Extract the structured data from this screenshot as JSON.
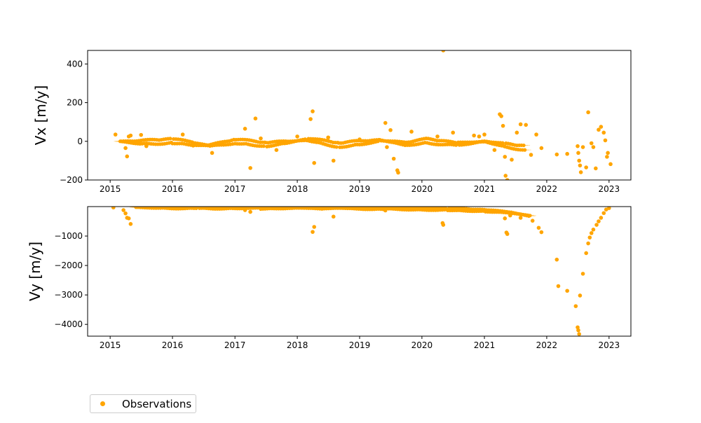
{
  "chart_data": {
    "type": "scatter",
    "x_axis": {
      "type": "date",
      "range": [
        "2014-08-22",
        "2023-05-09"
      ],
      "tick_labels": [
        "2015",
        "2016",
        "2017",
        "2018",
        "2019",
        "2020",
        "2021",
        "2022",
        "2023"
      ]
    },
    "series_color": "#ffa500",
    "legend": {
      "label": "Observations",
      "placement": "bottom-left"
    },
    "panels": [
      {
        "ylabel": "Vx [m/y]",
        "ylim": [
          -200,
          470
        ],
        "y_ticks": [
          400,
          200,
          0,
          -200
        ],
        "y_tick_labels": [
          "400",
          "200",
          "0",
          "−200"
        ],
        "band": [
          [
            "2015-03-01",
            0
          ],
          [
            "2015-07-01",
            -5
          ],
          [
            "2016-01-01",
            2
          ],
          [
            "2016-05-01",
            -12
          ],
          [
            "2016-08-01",
            -22
          ],
          [
            "2017-01-01",
            0
          ],
          [
            "2017-07-01",
            -15
          ],
          [
            "2017-11-01",
            -5
          ],
          [
            "2018-03-01",
            10
          ],
          [
            "2018-09-01",
            -18
          ],
          [
            "2019-01-01",
            -8
          ],
          [
            "2019-05-01",
            5
          ],
          [
            "2019-10-01",
            -12
          ],
          [
            "2020-02-01",
            2
          ],
          [
            "2020-08-01",
            -15
          ],
          [
            "2021-01-01",
            0
          ],
          [
            "2021-05-01",
            -20
          ],
          [
            "2021-09-01",
            -35
          ]
        ],
        "points": [
          [
            "2015-02-01",
            35
          ],
          [
            "2015-04-01",
            -35
          ],
          [
            "2015-04-10",
            -78
          ],
          [
            "2015-04-20",
            25
          ],
          [
            "2015-05-01",
            30
          ],
          [
            "2015-07-01",
            33
          ],
          [
            "2015-08-01",
            -25
          ],
          [
            "2016-03-01",
            35
          ],
          [
            "2016-05-01",
            -22
          ],
          [
            "2016-08-20",
            -60
          ],
          [
            "2017-03-01",
            65
          ],
          [
            "2017-04-01",
            -138
          ],
          [
            "2017-05-01",
            118
          ],
          [
            "2017-06-01",
            15
          ],
          [
            "2017-09-01",
            -45
          ],
          [
            "2018-01-01",
            25
          ],
          [
            "2018-03-20",
            115
          ],
          [
            "2018-04-01",
            155
          ],
          [
            "2018-04-10",
            -112
          ],
          [
            "2018-07-01",
            20
          ],
          [
            "2018-08-01",
            -100
          ],
          [
            "2019-01-01",
            10
          ],
          [
            "2019-06-01",
            95
          ],
          [
            "2019-06-10",
            -30
          ],
          [
            "2019-07-01",
            58
          ],
          [
            "2019-07-20",
            -90
          ],
          [
            "2019-08-10",
            -150
          ],
          [
            "2019-08-15",
            -162
          ],
          [
            "2019-11-01",
            50
          ],
          [
            "2020-04-01",
            25
          ],
          [
            "2020-05-05",
            470
          ],
          [
            "2020-07-01",
            45
          ],
          [
            "2020-11-01",
            30
          ],
          [
            "2020-12-01",
            25
          ],
          [
            "2021-01-01",
            35
          ],
          [
            "2021-03-01",
            -45
          ],
          [
            "2021-04-01",
            140
          ],
          [
            "2021-04-10",
            130
          ],
          [
            "2021-04-20",
            80
          ],
          [
            "2021-05-01",
            -80
          ],
          [
            "2021-05-05",
            -178
          ],
          [
            "2021-05-15",
            -200
          ],
          [
            "2021-06-10",
            -95
          ],
          [
            "2021-07-10",
            45
          ],
          [
            "2021-08-01",
            88
          ],
          [
            "2021-09-01",
            85
          ],
          [
            "2021-10-01",
            -70
          ],
          [
            "2021-11-01",
            35
          ],
          [
            "2021-12-01",
            -35
          ],
          [
            "2022-03-01",
            -68
          ],
          [
            "2022-05-01",
            -65
          ],
          [
            "2022-07-01",
            -25
          ],
          [
            "2022-07-05",
            -60
          ],
          [
            "2022-07-10",
            -100
          ],
          [
            "2022-07-15",
            -125
          ],
          [
            "2022-07-20",
            -160
          ],
          [
            "2022-08-01",
            -30
          ],
          [
            "2022-08-20",
            -135
          ],
          [
            "2022-09-01",
            150
          ],
          [
            "2022-09-20",
            -10
          ],
          [
            "2022-10-01",
            -30
          ],
          [
            "2022-10-15",
            -140
          ],
          [
            "2022-11-01",
            60
          ],
          [
            "2022-11-15",
            75
          ],
          [
            "2022-12-01",
            45
          ],
          [
            "2022-12-10",
            5
          ],
          [
            "2022-12-20",
            -80
          ],
          [
            "2022-12-25",
            -60
          ],
          [
            "2023-01-10",
            -118
          ]
        ]
      },
      {
        "ylabel": "Vy [m/y]",
        "ylim": [
          -4400,
          0
        ],
        "y_ticks": [
          -1000,
          -2000,
          -3000,
          -4000
        ],
        "y_tick_labels": [
          "−1000",
          "−2000",
          "−3000",
          "−4000"
        ],
        "band": [
          [
            "2015-06-01",
            -20
          ],
          [
            "2016-06-01",
            -30
          ],
          [
            "2017-06-01",
            -40
          ],
          [
            "2018-06-01",
            -45
          ],
          [
            "2019-06-01",
            -60
          ],
          [
            "2020-06-01",
            -90
          ],
          [
            "2021-01-01",
            -130
          ],
          [
            "2021-06-01",
            -200
          ],
          [
            "2021-10-01",
            -320
          ]
        ],
        "points": [
          [
            "2015-01-20",
            -30
          ],
          [
            "2015-03-20",
            -120
          ],
          [
            "2015-04-01",
            -230
          ],
          [
            "2015-04-10",
            -380
          ],
          [
            "2015-04-20",
            -400
          ],
          [
            "2015-05-01",
            -590
          ],
          [
            "2016-03-01",
            -50
          ],
          [
            "2017-03-01",
            -120
          ],
          [
            "2017-04-01",
            -180
          ],
          [
            "2018-04-01",
            -860
          ],
          [
            "2018-04-10",
            -690
          ],
          [
            "2018-08-01",
            -340
          ],
          [
            "2019-06-01",
            -130
          ],
          [
            "2020-05-01",
            -560
          ],
          [
            "2020-05-05",
            -620
          ],
          [
            "2021-05-01",
            -400
          ],
          [
            "2021-05-10",
            -880
          ],
          [
            "2021-05-15",
            -930
          ],
          [
            "2021-06-01",
            -300
          ],
          [
            "2021-08-01",
            -380
          ],
          [
            "2021-10-10",
            -480
          ],
          [
            "2021-11-15",
            -720
          ],
          [
            "2021-12-01",
            -870
          ],
          [
            "2022-03-01",
            -1800
          ],
          [
            "2022-03-10",
            -2700
          ],
          [
            "2022-05-01",
            -2860
          ],
          [
            "2022-06-20",
            -3380
          ],
          [
            "2022-07-01",
            -4100
          ],
          [
            "2022-07-05",
            -4200
          ],
          [
            "2022-07-10",
            -4330
          ],
          [
            "2022-07-15",
            -3020
          ],
          [
            "2022-08-01",
            -2280
          ],
          [
            "2022-08-20",
            -1580
          ],
          [
            "2022-09-01",
            -1250
          ],
          [
            "2022-09-10",
            -1050
          ],
          [
            "2022-09-20",
            -900
          ],
          [
            "2022-10-01",
            -780
          ],
          [
            "2022-10-20",
            -620
          ],
          [
            "2022-11-01",
            -500
          ],
          [
            "2022-11-15",
            -380
          ],
          [
            "2022-12-01",
            -220
          ],
          [
            "2022-12-15",
            -100
          ],
          [
            "2023-01-01",
            -50
          ]
        ]
      }
    ]
  }
}
